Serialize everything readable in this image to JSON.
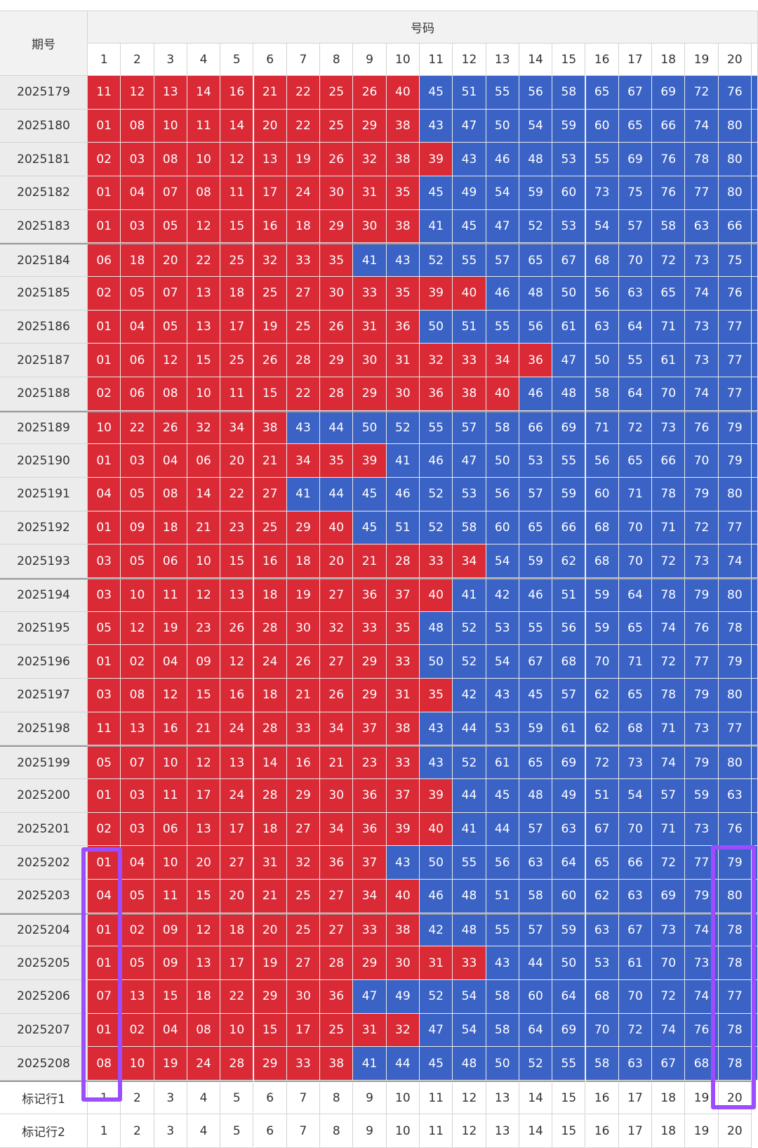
{
  "header": {
    "period_label": "期号",
    "numbers_label": "号码",
    "columns": [
      1,
      2,
      3,
      4,
      5,
      6,
      7,
      8,
      9,
      10,
      11,
      12,
      13,
      14,
      15,
      16,
      17,
      18,
      19,
      20
    ]
  },
  "colors": {
    "low": "#da2a36",
    "high": "#3b63c6",
    "threshold": 40
  },
  "rows": [
    {
      "period": "2025179",
      "numbers": [
        "11",
        "12",
        "13",
        "14",
        "16",
        "21",
        "22",
        "25",
        "26",
        "40",
        "45",
        "51",
        "55",
        "56",
        "58",
        "65",
        "67",
        "69",
        "72",
        "76"
      ]
    },
    {
      "period": "2025180",
      "numbers": [
        "01",
        "08",
        "10",
        "11",
        "14",
        "20",
        "22",
        "25",
        "29",
        "38",
        "43",
        "47",
        "50",
        "54",
        "59",
        "60",
        "65",
        "66",
        "74",
        "80"
      ]
    },
    {
      "period": "2025181",
      "numbers": [
        "02",
        "03",
        "08",
        "10",
        "12",
        "13",
        "19",
        "26",
        "32",
        "38",
        "39",
        "43",
        "46",
        "48",
        "53",
        "55",
        "69",
        "76",
        "78",
        "80"
      ]
    },
    {
      "period": "2025182",
      "numbers": [
        "01",
        "04",
        "07",
        "08",
        "11",
        "17",
        "24",
        "30",
        "31",
        "35",
        "45",
        "49",
        "54",
        "59",
        "60",
        "73",
        "75",
        "76",
        "77",
        "80"
      ]
    },
    {
      "period": "2025183",
      "numbers": [
        "01",
        "03",
        "05",
        "12",
        "15",
        "16",
        "18",
        "29",
        "30",
        "38",
        "41",
        "45",
        "47",
        "52",
        "53",
        "54",
        "57",
        "58",
        "63",
        "66"
      ]
    },
    {
      "period": "2025184",
      "numbers": [
        "06",
        "18",
        "20",
        "22",
        "25",
        "32",
        "33",
        "35",
        "41",
        "43",
        "52",
        "55",
        "57",
        "65",
        "67",
        "68",
        "70",
        "72",
        "73",
        "75"
      ]
    },
    {
      "period": "2025185",
      "numbers": [
        "02",
        "05",
        "07",
        "13",
        "18",
        "25",
        "27",
        "30",
        "33",
        "35",
        "39",
        "40",
        "46",
        "48",
        "50",
        "56",
        "63",
        "65",
        "74",
        "76"
      ]
    },
    {
      "period": "2025186",
      "numbers": [
        "01",
        "04",
        "05",
        "13",
        "17",
        "19",
        "25",
        "26",
        "31",
        "36",
        "50",
        "51",
        "55",
        "56",
        "61",
        "63",
        "64",
        "71",
        "73",
        "77"
      ]
    },
    {
      "period": "2025187",
      "numbers": [
        "01",
        "06",
        "12",
        "15",
        "25",
        "26",
        "28",
        "29",
        "30",
        "31",
        "32",
        "33",
        "34",
        "36",
        "47",
        "50",
        "55",
        "61",
        "73",
        "77"
      ]
    },
    {
      "period": "2025188",
      "numbers": [
        "02",
        "06",
        "08",
        "10",
        "11",
        "15",
        "22",
        "28",
        "29",
        "30",
        "36",
        "38",
        "40",
        "46",
        "48",
        "58",
        "64",
        "70",
        "74",
        "77"
      ]
    },
    {
      "period": "2025189",
      "numbers": [
        "10",
        "22",
        "26",
        "32",
        "34",
        "38",
        "43",
        "44",
        "50",
        "52",
        "55",
        "57",
        "58",
        "66",
        "69",
        "71",
        "72",
        "73",
        "76",
        "79"
      ]
    },
    {
      "period": "2025190",
      "numbers": [
        "01",
        "03",
        "04",
        "06",
        "20",
        "21",
        "34",
        "35",
        "39",
        "41",
        "46",
        "47",
        "50",
        "53",
        "55",
        "56",
        "65",
        "66",
        "70",
        "79"
      ]
    },
    {
      "period": "2025191",
      "numbers": [
        "04",
        "05",
        "08",
        "14",
        "22",
        "27",
        "41",
        "44",
        "45",
        "46",
        "52",
        "53",
        "56",
        "57",
        "59",
        "60",
        "71",
        "78",
        "79",
        "80"
      ]
    },
    {
      "period": "2025192",
      "numbers": [
        "01",
        "09",
        "18",
        "21",
        "23",
        "25",
        "29",
        "40",
        "45",
        "51",
        "52",
        "58",
        "60",
        "65",
        "66",
        "68",
        "70",
        "71",
        "72",
        "77"
      ]
    },
    {
      "period": "2025193",
      "numbers": [
        "03",
        "05",
        "06",
        "10",
        "15",
        "16",
        "18",
        "20",
        "21",
        "28",
        "33",
        "34",
        "54",
        "59",
        "62",
        "68",
        "70",
        "72",
        "73",
        "74"
      ]
    },
    {
      "period": "2025194",
      "numbers": [
        "03",
        "10",
        "11",
        "12",
        "13",
        "18",
        "19",
        "27",
        "36",
        "37",
        "40",
        "41",
        "42",
        "46",
        "51",
        "59",
        "64",
        "78",
        "79",
        "80"
      ]
    },
    {
      "period": "2025195",
      "numbers": [
        "05",
        "12",
        "19",
        "23",
        "26",
        "28",
        "30",
        "32",
        "33",
        "35",
        "48",
        "52",
        "53",
        "55",
        "56",
        "59",
        "65",
        "74",
        "76",
        "78"
      ]
    },
    {
      "period": "2025196",
      "numbers": [
        "01",
        "02",
        "04",
        "09",
        "12",
        "24",
        "26",
        "27",
        "29",
        "33",
        "50",
        "52",
        "54",
        "67",
        "68",
        "70",
        "71",
        "72",
        "77",
        "79"
      ]
    },
    {
      "period": "2025197",
      "numbers": [
        "03",
        "08",
        "12",
        "15",
        "16",
        "18",
        "21",
        "26",
        "29",
        "31",
        "35",
        "42",
        "43",
        "45",
        "57",
        "62",
        "65",
        "78",
        "79",
        "80"
      ]
    },
    {
      "period": "2025198",
      "numbers": [
        "11",
        "13",
        "16",
        "21",
        "24",
        "28",
        "33",
        "34",
        "37",
        "38",
        "43",
        "44",
        "53",
        "59",
        "61",
        "62",
        "68",
        "71",
        "73",
        "77"
      ]
    },
    {
      "period": "2025199",
      "numbers": [
        "05",
        "07",
        "10",
        "12",
        "13",
        "14",
        "16",
        "21",
        "23",
        "33",
        "43",
        "52",
        "61",
        "65",
        "69",
        "72",
        "73",
        "74",
        "79",
        "80"
      ]
    },
    {
      "period": "2025200",
      "numbers": [
        "01",
        "03",
        "11",
        "17",
        "24",
        "28",
        "29",
        "30",
        "36",
        "37",
        "39",
        "44",
        "45",
        "48",
        "49",
        "51",
        "54",
        "57",
        "59",
        "63"
      ]
    },
    {
      "period": "2025201",
      "numbers": [
        "02",
        "03",
        "06",
        "13",
        "17",
        "18",
        "27",
        "34",
        "36",
        "39",
        "40",
        "41",
        "44",
        "57",
        "63",
        "67",
        "70",
        "71",
        "73",
        "76"
      ]
    },
    {
      "period": "2025202",
      "numbers": [
        "01",
        "04",
        "10",
        "20",
        "27",
        "31",
        "32",
        "36",
        "37",
        "43",
        "50",
        "55",
        "56",
        "63",
        "64",
        "65",
        "66",
        "72",
        "77",
        "79"
      ]
    },
    {
      "period": "2025203",
      "numbers": [
        "04",
        "05",
        "11",
        "15",
        "20",
        "21",
        "25",
        "27",
        "34",
        "40",
        "46",
        "48",
        "51",
        "58",
        "60",
        "62",
        "63",
        "69",
        "79",
        "80"
      ]
    },
    {
      "period": "2025204",
      "numbers": [
        "01",
        "02",
        "09",
        "12",
        "18",
        "20",
        "25",
        "27",
        "33",
        "38",
        "42",
        "48",
        "55",
        "57",
        "59",
        "63",
        "67",
        "73",
        "74",
        "78"
      ]
    },
    {
      "period": "2025205",
      "numbers": [
        "01",
        "05",
        "09",
        "13",
        "17",
        "19",
        "27",
        "28",
        "29",
        "30",
        "31",
        "33",
        "43",
        "44",
        "50",
        "53",
        "61",
        "70",
        "73",
        "78"
      ]
    },
    {
      "period": "2025206",
      "numbers": [
        "07",
        "13",
        "15",
        "18",
        "22",
        "29",
        "30",
        "36",
        "47",
        "49",
        "52",
        "54",
        "58",
        "60",
        "64",
        "68",
        "70",
        "72",
        "74",
        "77"
      ]
    },
    {
      "period": "2025207",
      "numbers": [
        "01",
        "02",
        "04",
        "08",
        "10",
        "15",
        "17",
        "25",
        "31",
        "32",
        "47",
        "54",
        "58",
        "64",
        "69",
        "70",
        "72",
        "74",
        "76",
        "78"
      ]
    },
    {
      "period": "2025208",
      "numbers": [
        "08",
        "10",
        "19",
        "24",
        "28",
        "29",
        "33",
        "38",
        "41",
        "44",
        "45",
        "48",
        "50",
        "52",
        "55",
        "58",
        "63",
        "67",
        "68",
        "78"
      ]
    }
  ],
  "footer": [
    {
      "label": "标记行1",
      "values": [
        1,
        2,
        3,
        4,
        5,
        6,
        7,
        8,
        9,
        10,
        11,
        12,
        13,
        14,
        15,
        16,
        17,
        18,
        19,
        20
      ]
    },
    {
      "label": "标记行2",
      "values": [
        1,
        2,
        3,
        4,
        5,
        6,
        7,
        8,
        9,
        10,
        11,
        12,
        13,
        14,
        15,
        16,
        17,
        18,
        19,
        20
      ]
    }
  ]
}
